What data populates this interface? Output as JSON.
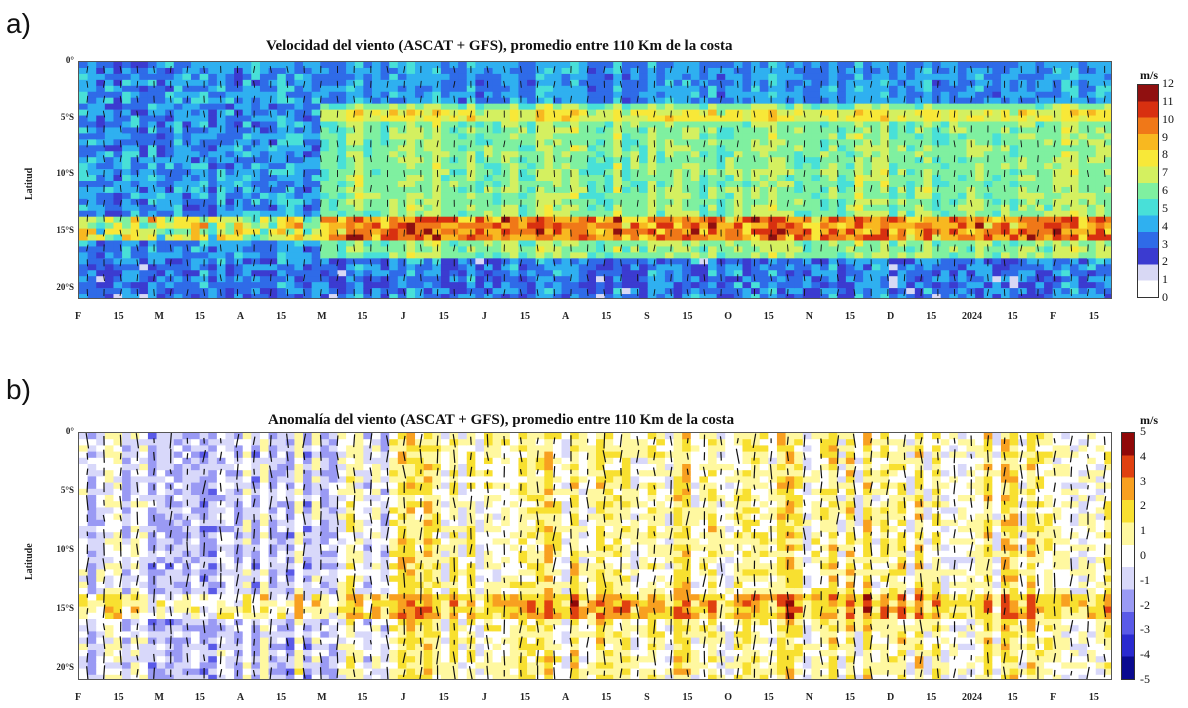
{
  "chart_data": [
    {
      "panel_label": "a)",
      "type": "heatmap",
      "title": "Velocidad del viento (ASCAT + GFS), promedio entre 110 Km de la costa",
      "ylabel": "Latitud",
      "y_ticks": [
        "0°",
        "5°S",
        "10°S",
        "15°S",
        "20°S"
      ],
      "x_ticks": [
        "F",
        "15",
        "M",
        "15",
        "A",
        "15",
        "M",
        "15",
        "J",
        "15",
        "J",
        "15",
        "A",
        "15",
        "S",
        "15",
        "O",
        "15",
        "N",
        "15",
        "D",
        "15",
        "2024",
        "15",
        "F",
        "15"
      ],
      "colorbar": {
        "unit": "m/s",
        "min": 0,
        "max": 12,
        "ticks": [
          "0",
          "1",
          "2",
          "3",
          "4",
          "5",
          "6",
          "7",
          "8",
          "9",
          "10",
          "11",
          "12"
        ]
      },
      "colors": [
        "#ffffff",
        "#d8d8f4",
        "#3b3bd0",
        "#2f6be8",
        "#2fb0f0",
        "#48e0d8",
        "#7ff0a0",
        "#d4f060",
        "#f8e838",
        "#f8b820",
        "#f07818",
        "#d83010",
        "#901010"
      ],
      "y_range": [
        0,
        21
      ]
    },
    {
      "panel_label": "b)",
      "type": "heatmap",
      "title": "Anomalía del viento (ASCAT + GFS), promedio entre 110 Km de la costa",
      "ylabel": "Latitude",
      "y_ticks": [
        "0°",
        "5°S",
        "10°S",
        "15°S",
        "20°S"
      ],
      "x_ticks": [
        "F",
        "15",
        "M",
        "15",
        "A",
        "15",
        "M",
        "15",
        "J",
        "15",
        "J",
        "15",
        "A",
        "15",
        "S",
        "15",
        "O",
        "15",
        "N",
        "15",
        "D",
        "15",
        "2024",
        "15",
        "F",
        "15"
      ],
      "colorbar": {
        "unit": "m/s",
        "min": -5,
        "max": 5,
        "ticks": [
          "-5",
          "-4",
          "-3",
          "-2",
          "-1",
          "0",
          "1",
          "2",
          "3",
          "4",
          "5"
        ]
      },
      "colors": [
        "#0a0a90",
        "#2a2ad0",
        "#5a5ae8",
        "#9a9af4",
        "#d8d8fa",
        "#ffffff",
        "#fff8a0",
        "#f8e030",
        "#f8a020",
        "#e04010",
        "#900808"
      ],
      "y_range": [
        0,
        21
      ]
    }
  ]
}
